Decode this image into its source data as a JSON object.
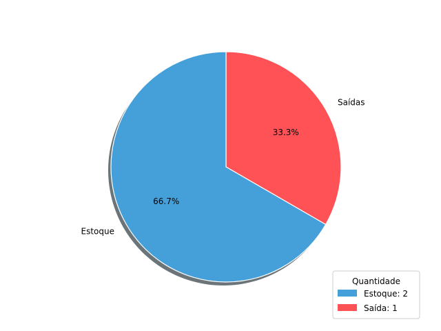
{
  "chart_data": {
    "type": "pie",
    "categories": [
      "Saídas",
      "Estoque"
    ],
    "values": [
      1,
      2
    ],
    "percent_labels": [
      "33.3%",
      "66.7%"
    ],
    "colors": [
      "#ff5257",
      "#45a0da"
    ],
    "start_angle_deg": 90,
    "counterclockwise": false,
    "shadow": true,
    "legend": {
      "title": "Quantidade",
      "placement": "lower-right",
      "entries": [
        {
          "label": "Estoque: 2",
          "color": "#45a0da"
        },
        {
          "label": "Saída: 1",
          "color": "#ff5257"
        }
      ]
    }
  }
}
